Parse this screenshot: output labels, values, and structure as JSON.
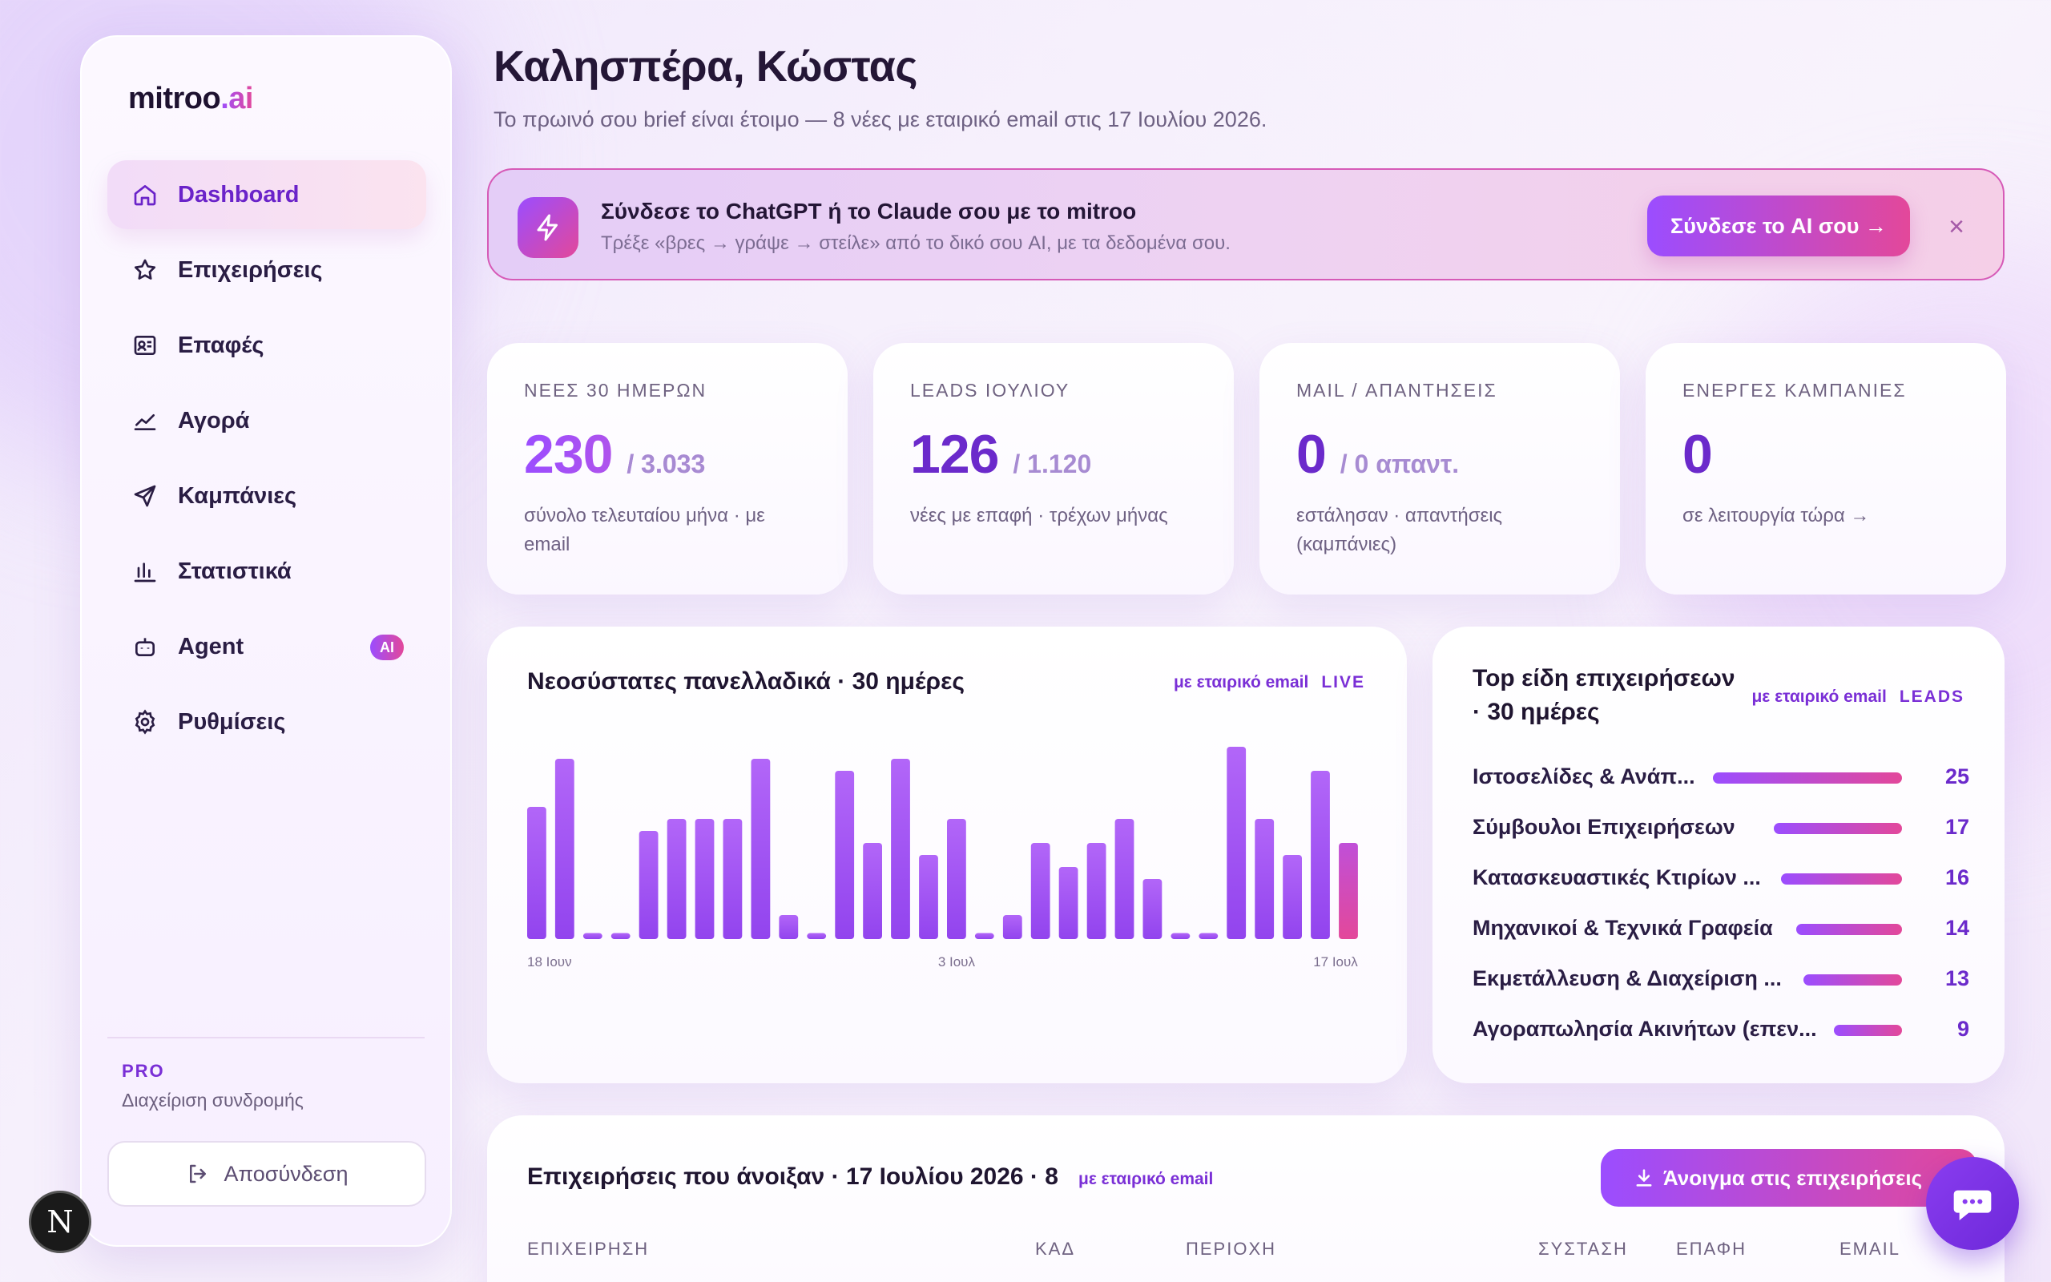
{
  "brand": {
    "name": "mitroo",
    "suffix": ".ai"
  },
  "sidebar": {
    "items": [
      {
        "label": "Dashboard",
        "icon": "home-icon",
        "active": true
      },
      {
        "label": "Επιχειρήσεις",
        "icon": "star-icon"
      },
      {
        "label": "Επαφές",
        "icon": "contact-card-icon"
      },
      {
        "label": "Αγορά",
        "icon": "trend-line-icon"
      },
      {
        "label": "Καμπάνιες",
        "icon": "send-icon"
      },
      {
        "label": "Στατιστικά",
        "icon": "bar-chart-icon"
      },
      {
        "label": "Agent",
        "icon": "robot-icon",
        "badge": "AI"
      },
      {
        "label": "Ρυθμίσεις",
        "icon": "gear-icon"
      }
    ],
    "plan": "PRO",
    "plan_sub": "Διαχείριση συνδρομής",
    "logout": "Αποσύνδεση"
  },
  "header": {
    "greeting": "Καλησπέρα, Κώστας",
    "subtitle": "Το πρωινό σου brief είναι έτοιμο — 8 νέες με εταιρικό email στις 17 Ιουλίου 2026."
  },
  "banner": {
    "title": "Σύνδεσε το ChatGPT ή το Claude σου με το mitroo",
    "subtitle": "Τρέξε «βρες → γράψε → στείλε» από το δικό σου AI, με τα δεδομένα σου.",
    "button": "Σύνδεσε το AI σου →",
    "close": "×"
  },
  "stats": [
    {
      "label": "ΝΕΕΣ 30 ΗΜΕΡΩΝ",
      "value": "230",
      "of": "/ 3.033",
      "note": "σύνολο τελευταίου μήνα · με email"
    },
    {
      "label": "LEADS ΙΟΥΛΙΟΥ",
      "value": "126",
      "of": "/ 1.120",
      "note": "νέες με επαφή · τρέχων μήνας"
    },
    {
      "label": "MAIL / ΑΠΑΝΤΗΣΕΙΣ",
      "value": "0",
      "of": "/ 0 απαντ.",
      "note": "εστάλησαν · απαντήσεις (καμπάνιες)"
    },
    {
      "label": "ΕΝΕΡΓΕΣ ΚΑΜΠΑΝΙΕΣ",
      "value": "0",
      "of": "",
      "note": "σε λειτουργία τώρα →"
    }
  ],
  "chart_panel": {
    "title": "Νεοσύστατες πανελλαδικά · 30 ημέρες",
    "tag": "με εταιρικό email",
    "live": "LIVE"
  },
  "chart_data": {
    "type": "bar",
    "x_tick_labels": [
      "18 Ιουν",
      "3 Ιουλ",
      "17 Ιουλ"
    ],
    "values": [
      11,
      15,
      0.5,
      0.5,
      9,
      10,
      10,
      10,
      15,
      2,
      0.5,
      14,
      8,
      15,
      7,
      10,
      0.5,
      2,
      8,
      6,
      8,
      10,
      5,
      0.5,
      0.5,
      16,
      10,
      7,
      14,
      8
    ],
    "highlight_last": true,
    "colors": {
      "bar": "#a855f7",
      "highlight": "#e3489a"
    }
  },
  "top_panel": {
    "title_line1": "Top είδη επιχειρήσεων",
    "title_line2": "· 30 ημέρες",
    "tag": "με εταιρικό email",
    "tag2": "LEADS",
    "rows": [
      {
        "name": "Ιστοσελίδες & Ανάπ...",
        "value": 25
      },
      {
        "name": "Σύμβουλοι Επιχειρήσεων",
        "value": 17
      },
      {
        "name": "Κατασκευαστικές Κτιρίων ...",
        "value": 16
      },
      {
        "name": "Μηχανικοί & Τεχνικά Γραφεία",
        "value": 14
      },
      {
        "name": "Εκμετάλλευση & Διαχείριση ...",
        "value": 13
      },
      {
        "name": "Αγοραπωλησία Ακινήτων (επεν...",
        "value": 9
      }
    ]
  },
  "table_panel": {
    "title": "Επιχειρήσεις που άνοιξαν · 17 Ιουλίου 2026 · 8",
    "tag": "με εταιρικό email",
    "button": "Άνοιγμα στις επιχειρήσεις",
    "columns": [
      "ΕΠΙΧΕΙΡΗΣΗ",
      "ΚΑΔ",
      "ΠΕΡΙΟΧΗ",
      "ΣΥΣΤΑΣΗ",
      "ΕΠΑΦΗ",
      "EMAIL"
    ]
  },
  "dev_badge": "N",
  "colors": {
    "accent": "#7a2fd6",
    "gradient_start": "#9b4dff",
    "gradient_end": "#e3489a"
  }
}
